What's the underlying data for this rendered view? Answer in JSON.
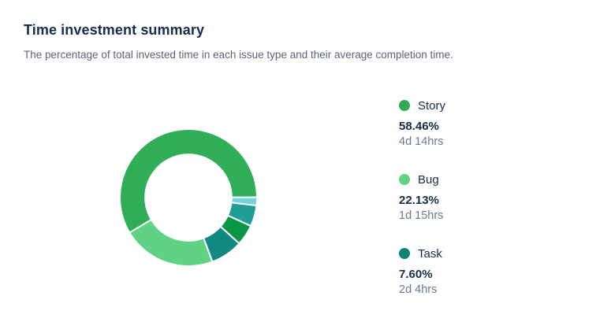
{
  "header": {
    "title": "Time investment summary",
    "subtitle": "The percentage of total invested time in each issue type and their average completion time."
  },
  "chart_data": {
    "type": "pie",
    "subtype": "donut",
    "title": "Time investment summary",
    "subtitle": "The percentage of total invested time in each issue type and their average completion time.",
    "legend_position": "right",
    "start_angle_deg": 239.2,
    "inner_radius_ratio": 0.63,
    "background": "#ffffff",
    "segments": [
      {
        "id": "story",
        "label": "Story",
        "value": 58.46,
        "color": "#2FAE57",
        "in_legend": true
      },
      {
        "id": "unlabeled-1",
        "label": "",
        "value": 1.95,
        "color": "#6FD6DC",
        "in_legend": false
      },
      {
        "id": "unlabeled-2",
        "label": "",
        "value": 4.95,
        "color": "#1F9E98",
        "in_legend": false
      },
      {
        "id": "unlabeled-3",
        "label": "",
        "value": 4.91,
        "color": "#0A9644",
        "in_legend": false
      },
      {
        "id": "task",
        "label": "Task",
        "value": 7.6,
        "color": "#0F8A80",
        "in_legend": true
      },
      {
        "id": "bug",
        "label": "Bug",
        "value": 22.13,
        "color": "#60D286",
        "in_legend": true
      }
    ],
    "legend": [
      {
        "label": "Story",
        "percent": "58.46%",
        "avg_completion": "4d 14hrs",
        "color": "#2CAC55"
      },
      {
        "label": "Bug",
        "percent": "22.13%",
        "avg_completion": "1d 15hrs",
        "color": "#5FD385"
      },
      {
        "label": "Task",
        "percent": "7.60%",
        "avg_completion": "2d 4hrs",
        "color": "#0F8578"
      }
    ]
  },
  "colors": {
    "title_text": "#172B4D",
    "subtitle_text": "#5A6477",
    "duration_text": "#6C798F",
    "separator": "#ffffff"
  }
}
